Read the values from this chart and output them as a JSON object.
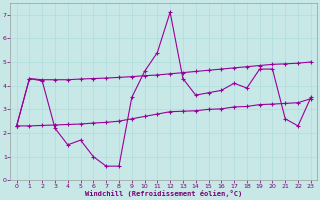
{
  "xlabel": "Windchill (Refroidissement éolien,°C)",
  "background_color": "#c8e8e8",
  "line_color": "#990099",
  "ylim": [
    0,
    7.5
  ],
  "xlim": [
    -0.5,
    23.5
  ],
  "yticks": [
    0,
    1,
    2,
    3,
    4,
    5,
    6,
    7
  ],
  "xticks": [
    0,
    1,
    2,
    3,
    4,
    5,
    6,
    7,
    8,
    9,
    10,
    11,
    12,
    13,
    14,
    15,
    16,
    17,
    18,
    19,
    20,
    21,
    22,
    23
  ],
  "series1_x": [
    0,
    1,
    2,
    3,
    4,
    5,
    6,
    7,
    8,
    9,
    10,
    11,
    12,
    13,
    14,
    15,
    16,
    17,
    18,
    19,
    20,
    21,
    22,
    23
  ],
  "series1_y": [
    2.3,
    4.3,
    4.2,
    2.2,
    1.5,
    1.7,
    1.0,
    0.6,
    0.6,
    3.5,
    4.6,
    5.4,
    7.1,
    4.3,
    3.6,
    3.7,
    3.8,
    4.1,
    3.9,
    4.7,
    4.7,
    2.6,
    2.3,
    3.5
  ],
  "series2_x": [
    0,
    1,
    2,
    3,
    4,
    5,
    6,
    7,
    8,
    9,
    10,
    11,
    12,
    13,
    14,
    15,
    16,
    17,
    18,
    19,
    20,
    21,
    22,
    23
  ],
  "series2_y": [
    2.3,
    4.3,
    4.25,
    4.25,
    4.25,
    4.28,
    4.3,
    4.32,
    4.35,
    4.38,
    4.42,
    4.45,
    4.5,
    4.55,
    4.6,
    4.65,
    4.7,
    4.75,
    4.8,
    4.85,
    4.9,
    4.92,
    4.95,
    5.0
  ],
  "series3_x": [
    0,
    1,
    2,
    3,
    4,
    5,
    6,
    7,
    8,
    9,
    10,
    11,
    12,
    13,
    14,
    15,
    16,
    17,
    18,
    19,
    20,
    21,
    22,
    23
  ],
  "series3_y": [
    2.3,
    2.3,
    2.32,
    2.34,
    2.36,
    2.38,
    2.42,
    2.45,
    2.5,
    2.6,
    2.7,
    2.8,
    2.9,
    2.92,
    2.94,
    3.0,
    3.02,
    3.1,
    3.12,
    3.2,
    3.22,
    3.25,
    3.28,
    3.45
  ]
}
